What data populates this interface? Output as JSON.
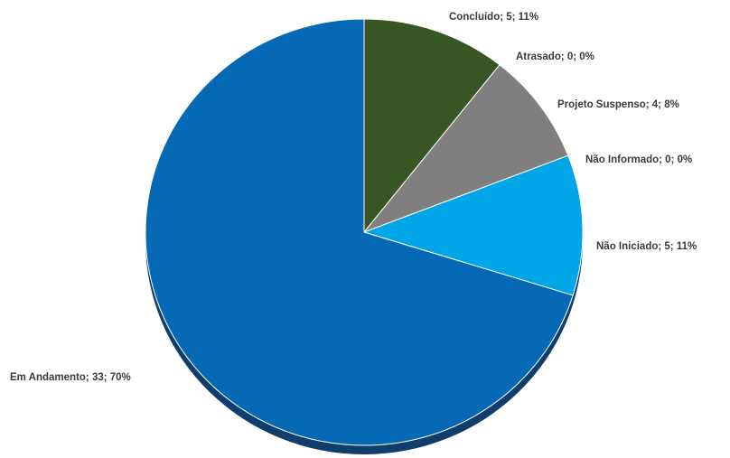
{
  "chart_data": {
    "type": "pie",
    "title": "",
    "slices": [
      {
        "label": "Concluído; 5; 11%",
        "name": "Concluído",
        "value": 5,
        "percent": 11,
        "color": "#375623"
      },
      {
        "label": "Atrasado; 0; 0%",
        "name": "Atrasado",
        "value": 0,
        "percent": 0,
        "color": "#c00000"
      },
      {
        "label": "Projeto Suspenso; 4; 8%",
        "name": "Projeto Suspenso",
        "value": 4,
        "percent": 8,
        "color": "#7f7f7f"
      },
      {
        "label": "Não Informado; 0; 0%",
        "name": "Não Informado",
        "value": 0,
        "percent": 0,
        "color": "#ffc000"
      },
      {
        "label": "Não Iniciado; 5; 11%",
        "name": "Não Iniciado",
        "value": 5,
        "percent": 11,
        "color": "#00a6e8"
      },
      {
        "label": "Em Andamento; 33; 70%",
        "name": "Em Andamento",
        "value": 33,
        "percent": 70,
        "color": "#0569b6"
      }
    ],
    "shadow_color": "#0f3e6d",
    "legend": "none"
  }
}
